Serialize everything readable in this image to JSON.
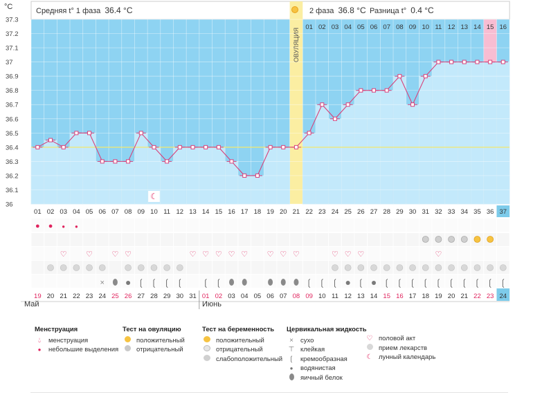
{
  "header": {
    "unit": "°C",
    "phase1_label": "Средняя t° 1 фаза",
    "phase1_value": "36.4 °C",
    "phase2_label": "2 фаза",
    "phase2_value": "36.8 °C",
    "diff_label": "Разница t°",
    "diff_value": "0.4 °C"
  },
  "ovulation_label": "ОВУЛЯЦИЯ",
  "chart_data": {
    "type": "line",
    "title": "",
    "ylim": [
      36,
      37.3
    ],
    "yticks": [
      "37.3",
      "37.2",
      "37.1",
      "37",
      "36.9",
      "36.8",
      "36.7",
      "36.6",
      "36.5",
      "36.4",
      "36.3",
      "36.2",
      "36.1",
      "36"
    ],
    "coverline": 36.4,
    "ovulation_day": 21,
    "cycle_days": [
      "01",
      "02",
      "03",
      "04",
      "05",
      "06",
      "07",
      "08",
      "09",
      "10",
      "11",
      "12",
      "13",
      "14",
      "15",
      "16",
      "17",
      "18",
      "19",
      "20",
      "21",
      "22",
      "23",
      "24",
      "25",
      "26",
      "27",
      "28",
      "29",
      "30",
      "31",
      "32",
      "33",
      "34",
      "35",
      "36",
      "37"
    ],
    "postov_days": [
      "01",
      "02",
      "03",
      "04",
      "05",
      "06",
      "07",
      "08",
      "09",
      "10",
      "11",
      "12",
      "13",
      "14",
      "15",
      "16"
    ],
    "series": [
      {
        "values": [
          36.4,
          36.45,
          36.4,
          36.5,
          36.5,
          36.3,
          36.3,
          36.3,
          36.5,
          36.4,
          36.3,
          36.4,
          36.4,
          36.4,
          36.4,
          36.3,
          36.2,
          36.2,
          36.4,
          36.4,
          36.4,
          36.5,
          36.7,
          36.6,
          36.7,
          36.8,
          36.8,
          36.8,
          36.9,
          36.7,
          36.9,
          37.0,
          37.0,
          37.0,
          37.0,
          37.0,
          37.0
        ]
      }
    ],
    "calendar_dates": [
      "19",
      "20",
      "21",
      "22",
      "23",
      "24",
      "25",
      "26",
      "27",
      "28",
      "29",
      "30",
      "31",
      "01",
      "02",
      "03",
      "04",
      "05",
      "06",
      "07",
      "08",
      "09",
      "10",
      "11",
      "12",
      "13",
      "14",
      "15",
      "16",
      "17",
      "18",
      "19",
      "20",
      "21",
      "22",
      "23",
      "24"
    ],
    "red_dates": [
      0,
      6,
      7,
      13,
      14,
      20,
      21,
      27,
      28,
      34,
      35
    ],
    "months": [
      "Май",
      "Июнь"
    ],
    "month_start_index": 13,
    "menstruation": [
      "heavy",
      "heavy",
      "light",
      "light"
    ],
    "moon_day": 10,
    "ov_test": {
      "31": "neg",
      "32": "neg",
      "33": "neg",
      "34": "neg",
      "35": "pos",
      "36": "pos"
    },
    "intercourse_row1": [
      3,
      5,
      7,
      8,
      13,
      14,
      15,
      16,
      17,
      19,
      20,
      21,
      24,
      25,
      26,
      32
    ],
    "medication": [
      2,
      3,
      4,
      5,
      6,
      8,
      9,
      10,
      11,
      12,
      24,
      25,
      26,
      27,
      28,
      29,
      30,
      31,
      32,
      33,
      34,
      35,
      36,
      37
    ],
    "fluid": {
      "6": "dry",
      "7": "eggwhite",
      "8": "watery",
      "9": "creamy",
      "10": "creamy",
      "11": "creamy",
      "12": "creamy",
      "14": "creamy",
      "15": "creamy",
      "16": "eggwhite",
      "17": "eggwhite",
      "19": "eggwhite",
      "20": "eggwhite",
      "21": "eggwhite",
      "22": "creamy",
      "23": "creamy",
      "24": "creamy",
      "25": "watery",
      "26": "creamy",
      "27": "watery",
      "28": "creamy",
      "29": "creamy",
      "30": "creamy",
      "31": "creamy",
      "32": "creamy",
      "33": "creamy",
      "34": "creamy",
      "35": "creamy",
      "36": "creamy",
      "37": "creamy"
    }
  },
  "legend": {
    "menstruation": {
      "title": "Менструация",
      "items": [
        "менструация",
        "небольшие выделения"
      ]
    },
    "ovtest": {
      "title": "Тест на овуляцию",
      "items": [
        "положительный",
        "отрицательный"
      ]
    },
    "pregtest": {
      "title": "Тест на беременность",
      "items": [
        "положительный",
        "отрицательный",
        "слабоположительный"
      ]
    },
    "fluid": {
      "title": "Цервикальная жидкость",
      "items": [
        "сухо",
        "клейкая",
        "кремообразная",
        "водянистая",
        "яичный белок"
      ]
    },
    "other": {
      "items": [
        "половой акт",
        "прием лекарств",
        "лунный календарь"
      ]
    }
  },
  "colors": {
    "bg": "#93d5f3",
    "plot_upper": "#8ed3f2",
    "bar": "#c3e9fb",
    "line": "#d8417a",
    "ovulation": "#fbeea2",
    "highlight": "#f8bdd2",
    "current": "#7dcbea",
    "red": "#e0245e"
  }
}
